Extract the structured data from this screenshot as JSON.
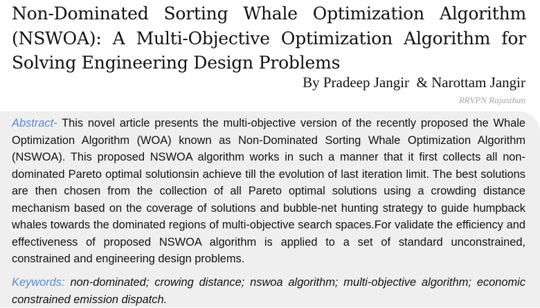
{
  "paper": {
    "title_lines": [
      "Non-Dominated Sorting Whale Optimization Algorithm",
      "(NSWOA): A Multi-Objective Optimization Algorithm for",
      "Solving Engineering Design Problems"
    ],
    "authors": "By Pradeep Jangir  & Narottam Jangir",
    "affiliation": "RRVPN Rajasthan",
    "abstract_label": "Abstract-",
    "abstract_text": " This novel article presents the multi-objective version of the recently proposed the Whale Optimization Algorithm (WOA) known as Non-Dominated Sorting Whale Optimization Algorithm (NSWOA). This proposed NSWOA algorithm works in such a manner that it first collects all non-dominated Pareto optimal solutionsin achieve till the evolution of last iteration limit. The best solutions are then chosen from the collection of all Pareto optimal solutions using a crowding distance mechanism based on the coverage of solutions and bubble-net hunting strategy to guide humpback whales towards the dominated regions of multi-objective search spaces.For validate the efficiency and effectiveness of proposed NSWOA algorithm is applied to a set of standard unconstrained, constrained and engineering design problems.",
    "keywords_label": "Keywords:",
    "keywords_text": " non-dominated; crowing distance; nswoa algorithm; multi-objective algorithm; economic constrained emission dispatch."
  }
}
